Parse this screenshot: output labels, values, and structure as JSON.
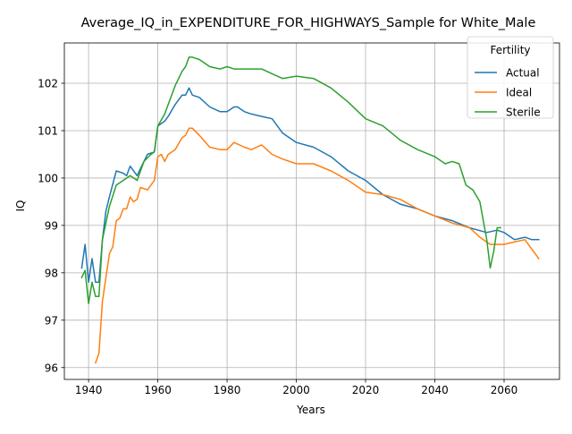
{
  "chart_data": {
    "type": "line",
    "title": "Average_IQ_in_EXPENDITURE_FOR_HIGHWAYS_Sample for White_Male",
    "xlabel": "Years",
    "ylabel": "IQ",
    "xlim": [
      1933,
      2076
    ],
    "ylim": [
      95.75,
      102.85
    ],
    "xticks": [
      1940,
      1960,
      1980,
      2000,
      2020,
      2040,
      2060
    ],
    "yticks": [
      96,
      97,
      98,
      99,
      100,
      101,
      102
    ],
    "grid": true,
    "legend": {
      "title": "Fertility",
      "position": "top-right"
    },
    "series": [
      {
        "name": "Actual",
        "color": "#1f77b4",
        "x": [
          1938,
          1939,
          1940,
          1941,
          1942,
          1943,
          1944,
          1945,
          1946,
          1948,
          1950,
          1951,
          1952,
          1954,
          1955,
          1957,
          1959,
          1960,
          1962,
          1963,
          1965,
          1967,
          1968,
          1969,
          1970,
          1972,
          1975,
          1978,
          1980,
          1982,
          1983,
          1985,
          1987,
          1990,
          1993,
          1996,
          2000,
          2005,
          2010,
          2015,
          2020,
          2025,
          2030,
          2035,
          2040,
          2045,
          2050,
          2055,
          2058,
          2060,
          2063,
          2066,
          2068,
          2070
        ],
        "values": [
          98.1,
          98.6,
          97.8,
          98.3,
          97.8,
          97.8,
          98.7,
          99.3,
          99.6,
          100.15,
          100.1,
          100.05,
          100.25,
          100.05,
          100.2,
          100.5,
          100.55,
          101.1,
          101.2,
          101.3,
          101.55,
          101.75,
          101.75,
          101.9,
          101.75,
          101.7,
          101.5,
          101.4,
          101.4,
          101.5,
          101.5,
          101.4,
          101.35,
          101.3,
          101.25,
          100.95,
          100.75,
          100.65,
          100.45,
          100.15,
          99.95,
          99.65,
          99.45,
          99.35,
          99.2,
          99.1,
          98.95,
          98.85,
          98.9,
          98.85,
          98.7,
          98.75,
          98.7,
          98.7
        ]
      },
      {
        "name": "Ideal",
        "color": "#ff7f0e",
        "x": [
          1942,
          1943,
          1944,
          1945,
          1946,
          1947,
          1948,
          1949,
          1950,
          1951,
          1952,
          1953,
          1954,
          1955,
          1957,
          1959,
          1960,
          1961,
          1962,
          1963,
          1965,
          1967,
          1968,
          1969,
          1970,
          1972,
          1975,
          1978,
          1980,
          1982,
          1985,
          1987,
          1990,
          1993,
          1996,
          2000,
          2005,
          2010,
          2015,
          2020,
          2025,
          2030,
          2035,
          2040,
          2045,
          2050,
          2053,
          2056,
          2060,
          2063,
          2066,
          2068,
          2070
        ],
        "values": [
          96.1,
          96.3,
          97.4,
          97.9,
          98.4,
          98.55,
          99.1,
          99.15,
          99.35,
          99.35,
          99.6,
          99.5,
          99.55,
          99.8,
          99.75,
          99.95,
          100.45,
          100.5,
          100.35,
          100.5,
          100.6,
          100.85,
          100.9,
          101.05,
          101.05,
          100.9,
          100.65,
          100.6,
          100.6,
          100.75,
          100.65,
          100.6,
          100.7,
          100.5,
          100.4,
          100.3,
          100.3,
          100.15,
          99.95,
          99.7,
          99.65,
          99.55,
          99.35,
          99.2,
          99.05,
          98.95,
          98.75,
          98.6,
          98.6,
          98.65,
          98.7,
          98.5,
          98.3
        ]
      },
      {
        "name": "Sterile",
        "color": "#2ca02c",
        "x": [
          1938,
          1939,
          1940,
          1941,
          1942,
          1943,
          1944,
          1945,
          1946,
          1948,
          1950,
          1952,
          1954,
          1956,
          1958,
          1959,
          1960,
          1962,
          1963,
          1965,
          1967,
          1968,
          1969,
          1970,
          1972,
          1975,
          1978,
          1980,
          1982,
          1985,
          1990,
          1993,
          1996,
          2000,
          2005,
          2010,
          2015,
          2020,
          2025,
          2030,
          2035,
          2040,
          2043,
          2045,
          2047,
          2049,
          2051,
          2053,
          2055,
          2056,
          2057,
          2058,
          2059
        ],
        "values": [
          97.9,
          98.05,
          97.35,
          97.8,
          97.5,
          97.5,
          98.7,
          99.05,
          99.4,
          99.85,
          99.95,
          100.05,
          99.95,
          100.35,
          100.5,
          100.55,
          101.1,
          101.35,
          101.55,
          101.95,
          102.25,
          102.35,
          102.55,
          102.55,
          102.5,
          102.35,
          102.3,
          102.35,
          102.3,
          102.3,
          102.3,
          102.2,
          102.1,
          102.15,
          102.1,
          101.9,
          101.6,
          101.25,
          101.1,
          100.8,
          100.6,
          100.45,
          100.3,
          100.35,
          100.3,
          99.85,
          99.75,
          99.5,
          98.7,
          98.1,
          98.45,
          98.95,
          98.95
        ]
      }
    ]
  }
}
